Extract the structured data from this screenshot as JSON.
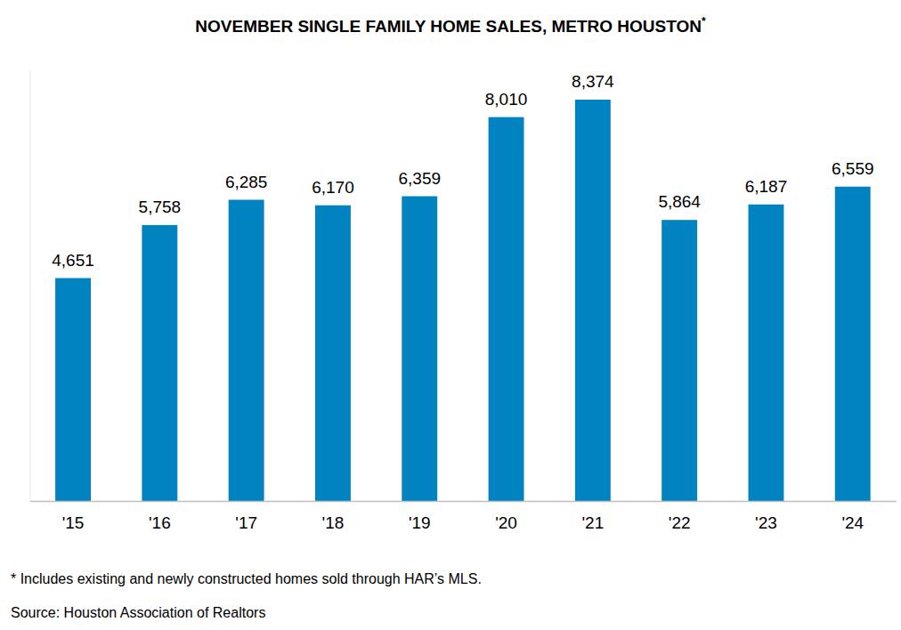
{
  "chart_data": {
    "type": "bar",
    "title": "NOVEMBER SINGLE FAMILY HOME SALES, METRO HOUSTON*",
    "categories": [
      "'15",
      "'16",
      "'17",
      "'18",
      "'19",
      "'20",
      "'21",
      "'22",
      "'23",
      "'24"
    ],
    "values": [
      4651,
      5758,
      6285,
      6170,
      6359,
      8010,
      8374,
      5864,
      6187,
      6559
    ],
    "value_labels": [
      "4,651",
      "5,758",
      "6,285",
      "6,170",
      "6,359",
      "8,010",
      "8,374",
      "5,864",
      "6,187",
      "6,559"
    ],
    "color": "#0083c0",
    "ylim": [
      0,
      9000
    ],
    "data_labels": true,
    "tick_labels": "x",
    "notes": [
      "* Includes existing and newly constructed homes sold through HAR’s MLS.",
      "Source: Houston Association of Realtors"
    ]
  }
}
